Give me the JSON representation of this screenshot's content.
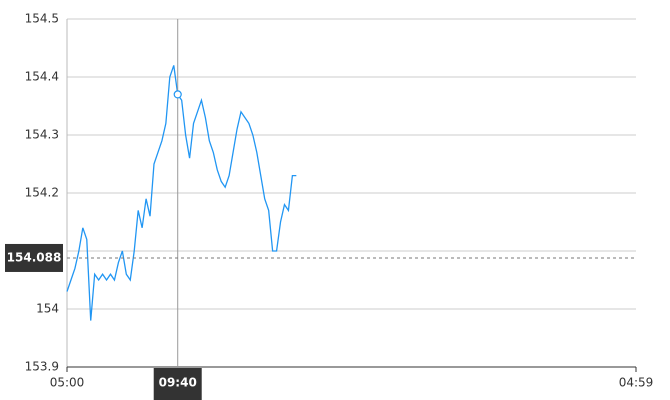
{
  "chart_data": {
    "type": "line",
    "x": [
      "05:00",
      "05:10",
      "05:20",
      "05:30",
      "05:40",
      "05:50",
      "06:00",
      "06:10",
      "06:20",
      "06:30",
      "06:40",
      "06:50",
      "07:00",
      "07:10",
      "07:20",
      "07:30",
      "07:40",
      "07:50",
      "08:00",
      "08:10",
      "08:20",
      "08:30",
      "08:40",
      "08:50",
      "09:00",
      "09:10",
      "09:20",
      "09:30",
      "09:40",
      "09:50",
      "10:00",
      "10:10",
      "10:20",
      "10:30",
      "10:40",
      "10:50",
      "11:00",
      "11:10",
      "11:20",
      "11:30",
      "11:40",
      "11:50",
      "12:00",
      "12:10",
      "12:20",
      "12:30",
      "12:40",
      "12:50",
      "13:00",
      "13:10",
      "13:20",
      "13:30",
      "13:40",
      "13:50",
      "14:00",
      "14:10",
      "14:20",
      "14:30",
      "14:40"
    ],
    "series": [
      {
        "color": "#2196f3",
        "values": [
          154.03,
          154.05,
          154.07,
          154.1,
          154.14,
          154.12,
          153.98,
          154.06,
          154.05,
          154.06,
          154.05,
          154.06,
          154.05,
          154.08,
          154.1,
          154.06,
          154.05,
          154.1,
          154.17,
          154.14,
          154.19,
          154.16,
          154.25,
          154.27,
          154.29,
          154.32,
          154.4,
          154.42,
          154.37,
          154.36,
          154.3,
          154.26,
          154.32,
          154.34,
          154.36,
          154.33,
          154.29,
          154.27,
          154.24,
          154.22,
          154.21,
          154.23,
          154.27,
          154.31,
          154.34,
          154.33,
          154.32,
          154.3,
          154.27,
          154.23,
          154.19,
          154.17,
          154.1,
          154.1,
          154.15,
          154.18,
          154.17,
          154.23,
          154.23
        ]
      }
    ],
    "xlim": [
      "05:00",
      "04:59"
    ],
    "xticks": [
      "05:00",
      "04:59"
    ],
    "ylim": [
      153.9,
      154.5
    ],
    "yticks": [
      153.9,
      154,
      154.1,
      154.2,
      154.3,
      154.4,
      154.5
    ],
    "grid": true,
    "crosshair": {
      "x": "09:40",
      "y": 154.088
    }
  }
}
